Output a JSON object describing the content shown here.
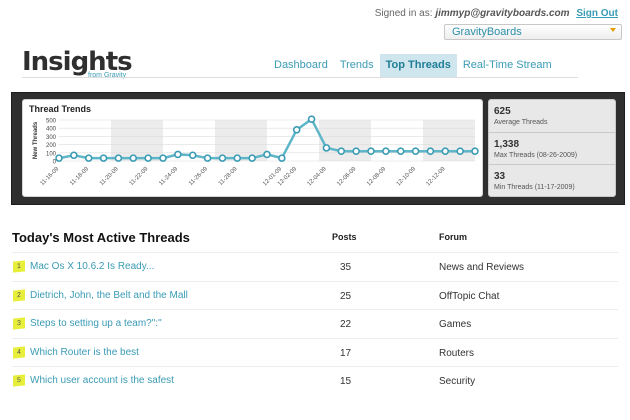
{
  "header": {
    "signed_in_label": "Signed in as:",
    "user": "jimmyp@gravityboards.com",
    "signout": "Sign Out",
    "site_selector": "GravityBoards"
  },
  "logo": {
    "title": "Insights",
    "subtitle": "from Gravity"
  },
  "nav": {
    "tabs": [
      {
        "label": "Dashboard",
        "active": false
      },
      {
        "label": "Trends",
        "active": false
      },
      {
        "label": "Top Threads",
        "active": true
      },
      {
        "label": "Real-Time Stream",
        "active": false
      }
    ]
  },
  "chart_data": {
    "type": "line",
    "title": "Thread Trends",
    "ylabel": "New Threads",
    "ylim": [
      0,
      500
    ],
    "yticks": [
      0,
      100,
      200,
      300,
      400,
      500
    ],
    "x": [
      "11-16-09",
      "11-17-09",
      "11-18-09",
      "11-19-09",
      "11-20-09",
      "11-21-09",
      "11-22-09",
      "11-23-09",
      "11-24-09",
      "11-25-09",
      "11-26-09",
      "11-27-09",
      "11-28-09",
      "11-29-09",
      "11-30-09",
      "12-01-09",
      "12-02-09",
      "12-03-09",
      "12-04-09",
      "12-05-09",
      "12-06-09",
      "12-07-09",
      "12-08-09",
      "12-09-09",
      "12-10-09",
      "12-11-09",
      "12-12-09",
      "12-13-09",
      "12-14-09"
    ],
    "xticks": [
      "11-16-09",
      "11-18-09",
      "11-20-09",
      "11-22-09",
      "11-24-09",
      "11-26-09",
      "11-28-09",
      "12-01-09",
      "12-02-09",
      "12-04-09",
      "12-06-09",
      "12-08-09",
      "12-10-09",
      "12-12-09"
    ],
    "series": [
      {
        "values": [
          35,
          70,
          35,
          35,
          35,
          35,
          35,
          35,
          80,
          70,
          35,
          35,
          35,
          35,
          80,
          35,
          380,
          510,
          160,
          120,
          120,
          120,
          120,
          120,
          120,
          120,
          120,
          120,
          120
        ]
      }
    ],
    "colors": {
      "line": "#5fb6c8",
      "marker_fill": "#ffffff",
      "marker_stroke": "#3a9bb4"
    }
  },
  "stats": [
    {
      "value": "625",
      "label": "Average Threads"
    },
    {
      "value": "1,338",
      "label": "Max Threads (08-26-2009)"
    },
    {
      "value": "33",
      "label": "Min Threads (11-17-2009)"
    }
  ],
  "table": {
    "title": "Today's Most Active Threads",
    "col_posts": "Posts",
    "col_forum": "Forum",
    "rows": [
      {
        "rank": "1",
        "thread": "Mac Os X 10.6.2 Is Ready...",
        "posts": "35",
        "forum": "News and Reviews"
      },
      {
        "rank": "2",
        "thread": "Dietrich, John, the Belt and the Mall",
        "posts": "25",
        "forum": "OffTopic Chat"
      },
      {
        "rank": "3",
        "thread": "Steps to setting up a team?\":\"",
        "posts": "22",
        "forum": "Games"
      },
      {
        "rank": "4",
        "thread": "Which Router is the best",
        "posts": "17",
        "forum": "Routers"
      },
      {
        "rank": "5",
        "thread": "Which user account is the safest",
        "posts": "15",
        "forum": "Security"
      }
    ]
  }
}
